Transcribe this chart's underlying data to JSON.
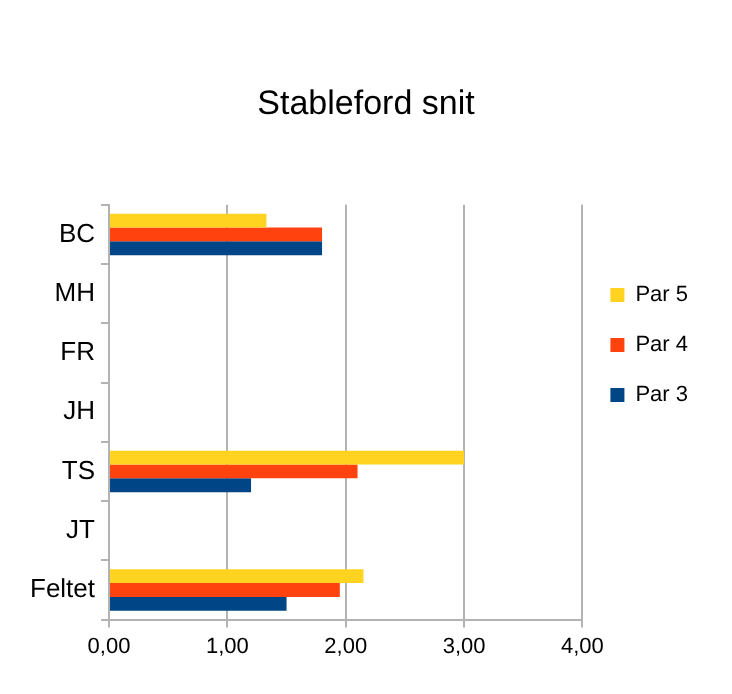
{
  "chart_data": {
    "type": "bar",
    "orientation": "horizontal",
    "title": "Stableford snit",
    "categories": [
      "BC",
      "MH",
      "FR",
      "JH",
      "TS",
      "JT",
      "Feltet"
    ],
    "series": [
      {
        "name": "Par 5",
        "color": "#ffd320",
        "values": [
          1.33,
          null,
          null,
          null,
          3.0,
          null,
          2.15
        ]
      },
      {
        "name": "Par 4",
        "color": "#ff420e",
        "values": [
          1.8,
          null,
          null,
          null,
          2.1,
          null,
          1.95
        ]
      },
      {
        "name": "Par 3",
        "color": "#004586",
        "values": [
          1.8,
          null,
          null,
          null,
          1.2,
          null,
          1.5
        ]
      }
    ],
    "xlim": [
      0,
      4
    ],
    "xticks": [
      {
        "value": 0,
        "label": "0,00"
      },
      {
        "value": 1,
        "label": "1,00"
      },
      {
        "value": 2,
        "label": "2,00"
      },
      {
        "value": 3,
        "label": "3,00"
      },
      {
        "value": 4,
        "label": "4,00"
      }
    ],
    "grid": "x",
    "legend": "right"
  }
}
